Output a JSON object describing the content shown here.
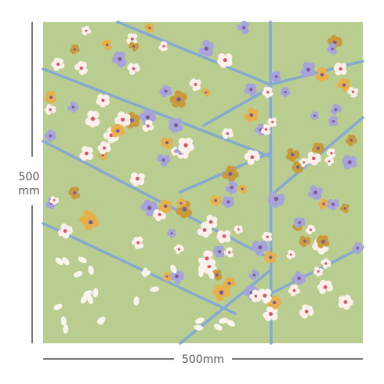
{
  "dimensions": {
    "height_value": "500",
    "height_unit": "mm",
    "width": "500mm"
  }
}
